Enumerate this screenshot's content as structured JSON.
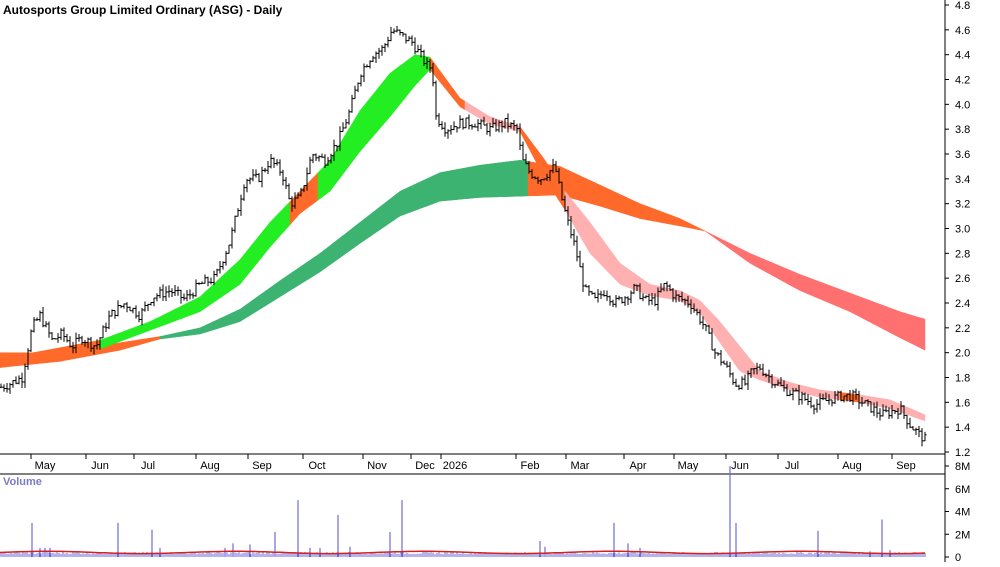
{
  "chart_data": {
    "type": "line",
    "title": "Autosports Group Limited Ordinary (ASG) - Daily",
    "price_axis": {
      "ticks": [
        "4.8",
        "4.6",
        "4.4",
        "4.2",
        "4.0",
        "3.8",
        "3.6",
        "3.4",
        "3.2",
        "3.0",
        "2.8",
        "2.6",
        "2.4",
        "2.2",
        "2.0",
        "1.8",
        "1.6",
        "1.4",
        "1.2"
      ],
      "ylim": [
        1.2,
        4.8
      ]
    },
    "x_axis": {
      "ticks": [
        "May",
        "Jun",
        "Jul",
        "Aug",
        "Sep",
        "Oct",
        "Nov",
        "Dec",
        "2026",
        "Feb",
        "Mar",
        "Apr",
        "May",
        "Jun",
        "Jul",
        "Aug",
        "Sep"
      ]
    },
    "price_series": {
      "name": "",
      "anchors": [
        [
          0,
          1.72
        ],
        [
          10,
          1.75
        ],
        [
          22,
          1.8
        ],
        [
          32,
          2.2
        ],
        [
          40,
          2.3
        ],
        [
          52,
          2.1
        ],
        [
          62,
          2.15
        ],
        [
          72,
          2.05
        ],
        [
          82,
          2.12
        ],
        [
          96,
          2.05
        ],
        [
          110,
          2.3
        ],
        [
          125,
          2.4
        ],
        [
          140,
          2.3
        ],
        [
          152,
          2.45
        ],
        [
          170,
          2.5
        ],
        [
          185,
          2.43
        ],
        [
          200,
          2.55
        ],
        [
          215,
          2.6
        ],
        [
          230,
          2.9
        ],
        [
          245,
          3.4
        ],
        [
          258,
          3.4
        ],
        [
          270,
          3.55
        ],
        [
          282,
          3.45
        ],
        [
          290,
          3.2
        ],
        [
          300,
          3.25
        ],
        [
          312,
          3.6
        ],
        [
          325,
          3.55
        ],
        [
          338,
          3.7
        ],
        [
          350,
          3.95
        ],
        [
          360,
          4.25
        ],
        [
          372,
          4.4
        ],
        [
          383,
          4.45
        ],
        [
          392,
          4.6
        ],
        [
          402,
          4.55
        ],
        [
          412,
          4.5
        ],
        [
          420,
          4.4
        ],
        [
          428,
          4.3
        ],
        [
          432,
          4.3
        ],
        [
          436,
          3.9
        ],
        [
          446,
          3.8
        ],
        [
          460,
          3.85
        ],
        [
          475,
          3.85
        ],
        [
          490,
          3.8
        ],
        [
          505,
          3.85
        ],
        [
          517,
          3.8
        ],
        [
          522,
          3.55
        ],
        [
          530,
          3.45
        ],
        [
          540,
          3.4
        ],
        [
          548,
          3.45
        ],
        [
          555,
          3.5
        ],
        [
          560,
          3.3
        ],
        [
          566,
          3.1
        ],
        [
          575,
          2.85
        ],
        [
          585,
          2.5
        ],
        [
          595,
          2.42
        ],
        [
          605,
          2.5
        ],
        [
          615,
          2.4
        ],
        [
          625,
          2.45
        ],
        [
          635,
          2.52
        ],
        [
          645,
          2.42
        ],
        [
          655,
          2.42
        ],
        [
          665,
          2.55
        ],
        [
          675,
          2.45
        ],
        [
          690,
          2.4
        ],
        [
          698,
          2.3
        ],
        [
          705,
          2.2
        ],
        [
          715,
          2.0
        ],
        [
          725,
          1.9
        ],
        [
          735,
          1.75
        ],
        [
          745,
          1.75
        ],
        [
          752,
          1.85
        ],
        [
          760,
          1.88
        ],
        [
          772,
          1.78
        ],
        [
          785,
          1.7
        ],
        [
          800,
          1.65
        ],
        [
          815,
          1.58
        ],
        [
          828,
          1.62
        ],
        [
          840,
          1.65
        ],
        [
          852,
          1.65
        ],
        [
          862,
          1.6
        ],
        [
          872,
          1.55
        ],
        [
          882,
          1.5
        ],
        [
          892,
          1.53
        ],
        [
          900,
          1.55
        ],
        [
          910,
          1.42
        ],
        [
          918,
          1.35
        ],
        [
          925,
          1.3
        ]
      ]
    },
    "ma_ribbon_short": {
      "segments": [
        {
          "from": 0,
          "to": 100,
          "color": "#ff6a2a"
        },
        {
          "from": 100,
          "to": 290,
          "color": "#22ee22"
        },
        {
          "from": 290,
          "to": 318,
          "color": "#ff6a2a"
        },
        {
          "from": 318,
          "to": 430,
          "color": "#22ee22"
        },
        {
          "from": 430,
          "to": 465,
          "color": "#ff6a2a"
        },
        {
          "from": 465,
          "to": 520,
          "color": "#ffb0b0"
        },
        {
          "from": 520,
          "to": 565,
          "color": "#ff6a2a"
        },
        {
          "from": 565,
          "to": 840,
          "color": "#ffb0b0"
        },
        {
          "from": 840,
          "to": 860,
          "color": "#ff6a2a"
        },
        {
          "from": 860,
          "to": 925,
          "color": "#ffb0b0"
        }
      ],
      "upper": [
        [
          0,
          1.95
        ],
        [
          100,
          2.1
        ],
        [
          150,
          2.25
        ],
        [
          200,
          2.45
        ],
        [
          240,
          2.75
        ],
        [
          270,
          3.05
        ],
        [
          300,
          3.3
        ],
        [
          330,
          3.55
        ],
        [
          360,
          3.95
        ],
        [
          390,
          4.25
        ],
        [
          415,
          4.4
        ],
        [
          430,
          4.38
        ],
        [
          460,
          4.05
        ],
        [
          490,
          3.9
        ],
        [
          520,
          3.82
        ],
        [
          545,
          3.55
        ],
        [
          565,
          3.3
        ],
        [
          590,
          3.05
        ],
        [
          620,
          2.72
        ],
        [
          650,
          2.55
        ],
        [
          680,
          2.5
        ],
        [
          700,
          2.42
        ],
        [
          720,
          2.25
        ],
        [
          740,
          2.05
        ],
        [
          760,
          1.85
        ],
        [
          790,
          1.76
        ],
        [
          820,
          1.7
        ],
        [
          860,
          1.66
        ],
        [
          890,
          1.62
        ],
        [
          925,
          1.5
        ]
      ],
      "lower": [
        [
          0,
          1.9
        ],
        [
          100,
          2.03
        ],
        [
          150,
          2.18
        ],
        [
          200,
          2.33
        ],
        [
          240,
          2.55
        ],
        [
          270,
          2.85
        ],
        [
          300,
          3.12
        ],
        [
          330,
          3.3
        ],
        [
          360,
          3.62
        ],
        [
          390,
          3.9
        ],
        [
          415,
          4.15
        ],
        [
          430,
          4.28
        ],
        [
          460,
          3.98
        ],
        [
          490,
          3.84
        ],
        [
          520,
          3.78
        ],
        [
          545,
          3.4
        ],
        [
          565,
          3.15
        ],
        [
          590,
          2.8
        ],
        [
          620,
          2.55
        ],
        [
          650,
          2.46
        ],
        [
          680,
          2.42
        ],
        [
          700,
          2.32
        ],
        [
          720,
          2.08
        ],
        [
          740,
          1.85
        ],
        [
          760,
          1.78
        ],
        [
          790,
          1.7
        ],
        [
          820,
          1.64
        ],
        [
          860,
          1.6
        ],
        [
          890,
          1.55
        ],
        [
          925,
          1.45
        ]
      ]
    },
    "ma_ribbon_long": {
      "segments": [
        {
          "from": 0,
          "to": 160,
          "color": "#ff6a2a"
        },
        {
          "from": 160,
          "to": 528,
          "color": "#3cb371"
        },
        {
          "from": 528,
          "to": 705,
          "color": "#ff6a2a"
        },
        {
          "from": 705,
          "to": 925,
          "color": "#ff7070"
        }
      ],
      "upper": [
        [
          0,
          2.0
        ],
        [
          60,
          2.0
        ],
        [
          120,
          2.08
        ],
        [
          160,
          2.13
        ],
        [
          200,
          2.2
        ],
        [
          240,
          2.35
        ],
        [
          280,
          2.58
        ],
        [
          320,
          2.8
        ],
        [
          360,
          3.05
        ],
        [
          400,
          3.3
        ],
        [
          440,
          3.45
        ],
        [
          480,
          3.51
        ],
        [
          520,
          3.55
        ],
        [
          560,
          3.5
        ],
        [
          600,
          3.35
        ],
        [
          640,
          3.2
        ],
        [
          680,
          3.08
        ],
        [
          705,
          2.98
        ],
        [
          750,
          2.8
        ],
        [
          800,
          2.63
        ],
        [
          850,
          2.48
        ],
        [
          900,
          2.33
        ],
        [
          925,
          2.27
        ]
      ],
      "lower": [
        [
          0,
          1.88
        ],
        [
          60,
          1.93
        ],
        [
          120,
          2.02
        ],
        [
          160,
          2.11
        ],
        [
          200,
          2.15
        ],
        [
          240,
          2.25
        ],
        [
          280,
          2.45
        ],
        [
          320,
          2.65
        ],
        [
          360,
          2.88
        ],
        [
          400,
          3.1
        ],
        [
          440,
          3.22
        ],
        [
          480,
          3.25
        ],
        [
          520,
          3.26
        ],
        [
          560,
          3.27
        ],
        [
          600,
          3.18
        ],
        [
          640,
          3.08
        ],
        [
          680,
          3.02
        ],
        [
          705,
          2.98
        ],
        [
          750,
          2.72
        ],
        [
          800,
          2.5
        ],
        [
          850,
          2.33
        ],
        [
          900,
          2.12
        ],
        [
          925,
          2.02
        ]
      ]
    },
    "volume": {
      "title": "Volume",
      "ticks": [
        "8M",
        "6M",
        "4M",
        "2M",
        "0"
      ],
      "ylim": [
        0,
        8
      ],
      "baseline_m": 0.25,
      "spikes_m": [
        [
          32,
          3.0
        ],
        [
          40,
          0.8
        ],
        [
          45,
          0.8
        ],
        [
          50,
          0.8
        ],
        [
          118,
          3.0
        ],
        [
          152,
          2.4
        ],
        [
          160,
          0.8
        ],
        [
          225,
          0.8
        ],
        [
          233,
          1.2
        ],
        [
          250,
          1.1
        ],
        [
          275,
          2.2
        ],
        [
          298,
          5.0
        ],
        [
          310,
          0.8
        ],
        [
          320,
          0.8
        ],
        [
          338,
          3.7
        ],
        [
          350,
          0.9
        ],
        [
          390,
          2.2
        ],
        [
          402,
          5.0
        ],
        [
          540,
          1.4
        ],
        [
          545,
          0.9
        ],
        [
          614,
          3.0
        ],
        [
          628,
          1.2
        ],
        [
          640,
          0.8
        ],
        [
          730,
          8.0
        ],
        [
          736,
          3.0
        ],
        [
          818,
          2.3
        ],
        [
          870,
          0.5
        ],
        [
          882,
          3.3
        ],
        [
          890,
          0.6
        ]
      ]
    }
  }
}
